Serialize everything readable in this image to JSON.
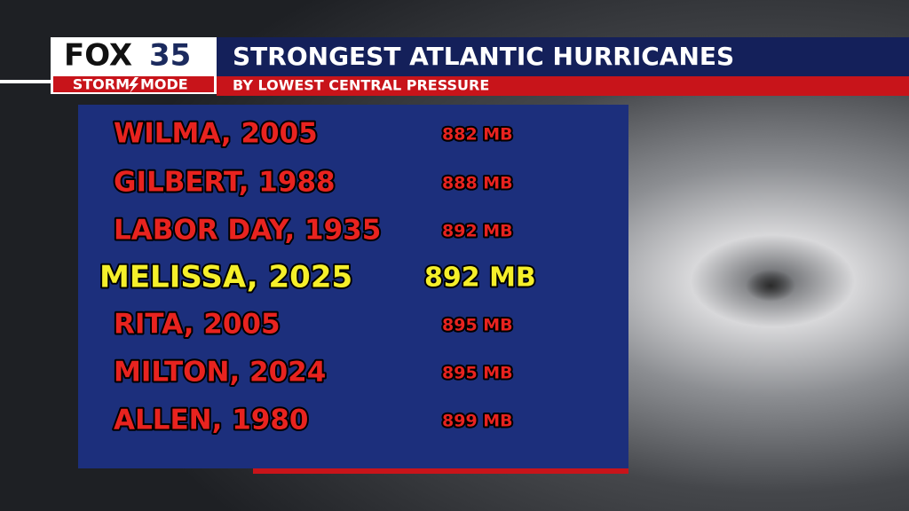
{
  "logo": {
    "brand": "FOX",
    "number": "35",
    "tag_left": "STORM",
    "tag_right": "MODE"
  },
  "header": {
    "title": "STRONGEST ATLANTIC HURRICANES",
    "subtitle": "BY LOWEST CENTRAL PRESSURE"
  },
  "table": {
    "rows": [
      {
        "name": "WILMA, 2005",
        "pressure": "882 MB"
      },
      {
        "name": "GILBERT, 1988",
        "pressure": "888 MB"
      },
      {
        "name": "LABOR DAY, 1935",
        "pressure": "892 MB"
      },
      {
        "name": "MELISSA, 2025",
        "pressure": "892 MB",
        "highlight": true
      },
      {
        "name": "RITA, 2005",
        "pressure": "895 MB"
      },
      {
        "name": "MILTON, 2024",
        "pressure": "895 MB"
      },
      {
        "name": "ALLEN, 1980",
        "pressure": "899 MB"
      }
    ]
  }
}
